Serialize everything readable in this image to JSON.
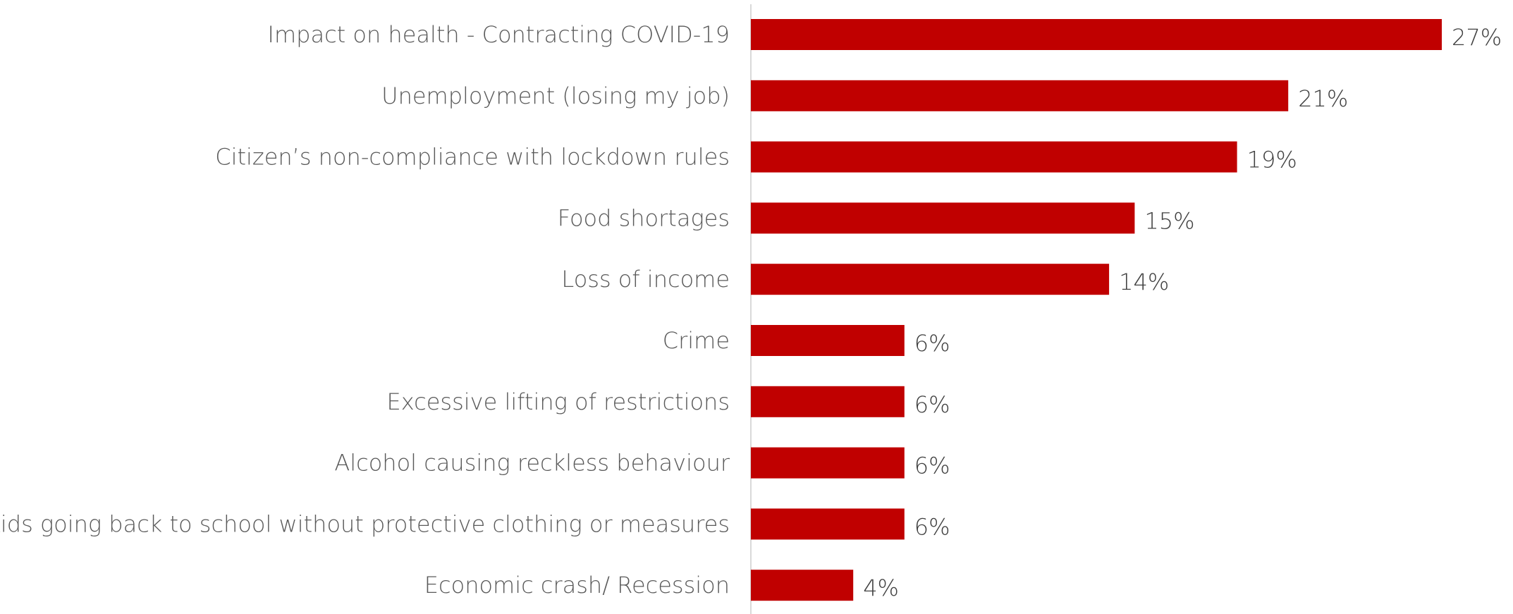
{
  "chart_data": {
    "type": "bar",
    "orientation": "horizontal",
    "categories": [
      "Impact on health - Contracting COVID-19",
      "Unemployment (losing my job)",
      "Citizen’s non-compliance with lockdown rules",
      "Food shortages",
      "Loss of income",
      "Crime",
      "Excessive lifting of restrictions",
      "Alcohol causing reckless behaviour",
      "Kids going back to school without protective clothing or measures",
      "Economic crash/ Recession"
    ],
    "values": [
      27,
      21,
      19,
      15,
      14,
      6,
      6,
      6,
      6,
      4
    ],
    "data_labels": [
      "27%",
      "21%",
      "19%",
      "15%",
      "14%",
      "6%",
      "6%",
      "6%",
      "6%",
      "4%"
    ],
    "value_unit": "%",
    "title": "",
    "xlabel": "",
    "ylabel": "",
    "grid": false,
    "legend": "none",
    "colors": {
      "bar": "#c00000",
      "axis": "#d9d9d9"
    }
  }
}
